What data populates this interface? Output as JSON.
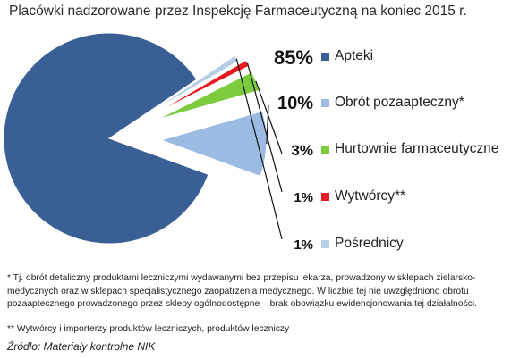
{
  "title": "Placówki nadzorowane przez Inspekcję Farmaceutyczną na koniec 2015 r.",
  "chart_data": {
    "type": "pie",
    "title": "Placówki nadzorowane przez Inspekcję Farmaceutyczną na koniec 2015 r.",
    "categories": [
      "Apteki",
      "Obrót pozaapteczny*",
      "Hurtownie farmaceutyczne",
      "Wytwórcy**",
      "Pośrednicy"
    ],
    "values": [
      85,
      10,
      3,
      1,
      1
    ],
    "labels": [
      "85%",
      "10%",
      "3%",
      "1%",
      "1%"
    ],
    "colors": [
      "#3a5f95",
      "#9cbbe2",
      "#7ccb3c",
      "#e8191f",
      "#b8cde8"
    ],
    "legend_position": "right",
    "exploded": true
  },
  "footnotes": {
    "note1": "* Tj. obrót detaliczny produktami leczniczymi wydawanymi bez przepisu lekarza, prowadzony w sklepach zielarsko-medycznych oraz w sklepach specjalistycznego zaopatrzenia medycznego. W liczbie tej nie uwzględniono obrotu pozaaptecznego prowadzonego przez sklepy ogólnodostępne – brak obowiązku ewidencjonowania tej działalności.",
    "note2": "** Wytwórcy i importerzy produktów leczniczych, produktów leczniczy",
    "source": "Źródło: Materiały kontrolne NIK"
  }
}
